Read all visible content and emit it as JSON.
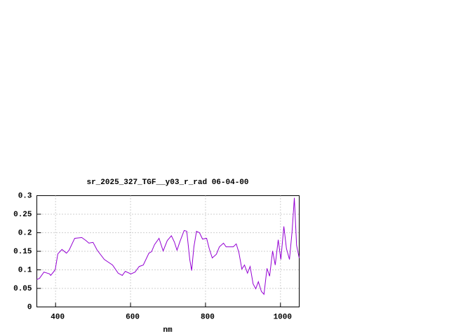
{
  "chart_data": {
    "type": "line",
    "title": "sr_2025_327_TGF__y03_r_rad 06-04-00",
    "x_label": "nm",
    "xlim": [
      350,
      1050
    ],
    "xticks": [
      400,
      600,
      800,
      1000
    ],
    "ylim": [
      0,
      0.3
    ],
    "yticks": [
      0,
      0.05,
      0.1,
      0.15,
      0.2,
      0.25,
      0.3
    ],
    "grid": true,
    "x": [
      350,
      357,
      369,
      384,
      387,
      399,
      406,
      417,
      429,
      436,
      451,
      470,
      481,
      489,
      500,
      511,
      530,
      552,
      567,
      578,
      586,
      601,
      612,
      623,
      634,
      649,
      656,
      664,
      676,
      687,
      698,
      709,
      717,
      724,
      732,
      743,
      750,
      758,
      763,
      769,
      776,
      784,
      792,
      803,
      810,
      818,
      829,
      837,
      848,
      855,
      874,
      882,
      889,
      897,
      904,
      912,
      919,
      927,
      934,
      941,
      949,
      956,
      964,
      971,
      979,
      986,
      994,
      1001,
      1009,
      1016,
      1024,
      1031,
      1037,
      1043,
      1050
    ],
    "series": [
      {
        "color": "#9400d3",
        "values": [
          0.074,
          0.077,
          0.094,
          0.089,
          0.085,
          0.1,
          0.143,
          0.155,
          0.145,
          0.153,
          0.185,
          0.187,
          0.179,
          0.172,
          0.174,
          0.153,
          0.128,
          0.113,
          0.091,
          0.085,
          0.096,
          0.089,
          0.094,
          0.109,
          0.113,
          0.145,
          0.149,
          0.168,
          0.185,
          0.151,
          0.179,
          0.192,
          0.175,
          0.153,
          0.177,
          0.206,
          0.204,
          0.128,
          0.098,
          0.162,
          0.204,
          0.2,
          0.183,
          0.185,
          0.157,
          0.132,
          0.142,
          0.162,
          0.172,
          0.162,
          0.162,
          0.17,
          0.147,
          0.102,
          0.113,
          0.091,
          0.109,
          0.062,
          0.049,
          0.068,
          0.042,
          0.034,
          0.104,
          0.083,
          0.151,
          0.113,
          0.181,
          0.128,
          0.217,
          0.157,
          0.128,
          0.204,
          0.294,
          0.166,
          0.132
        ]
      }
    ]
  }
}
